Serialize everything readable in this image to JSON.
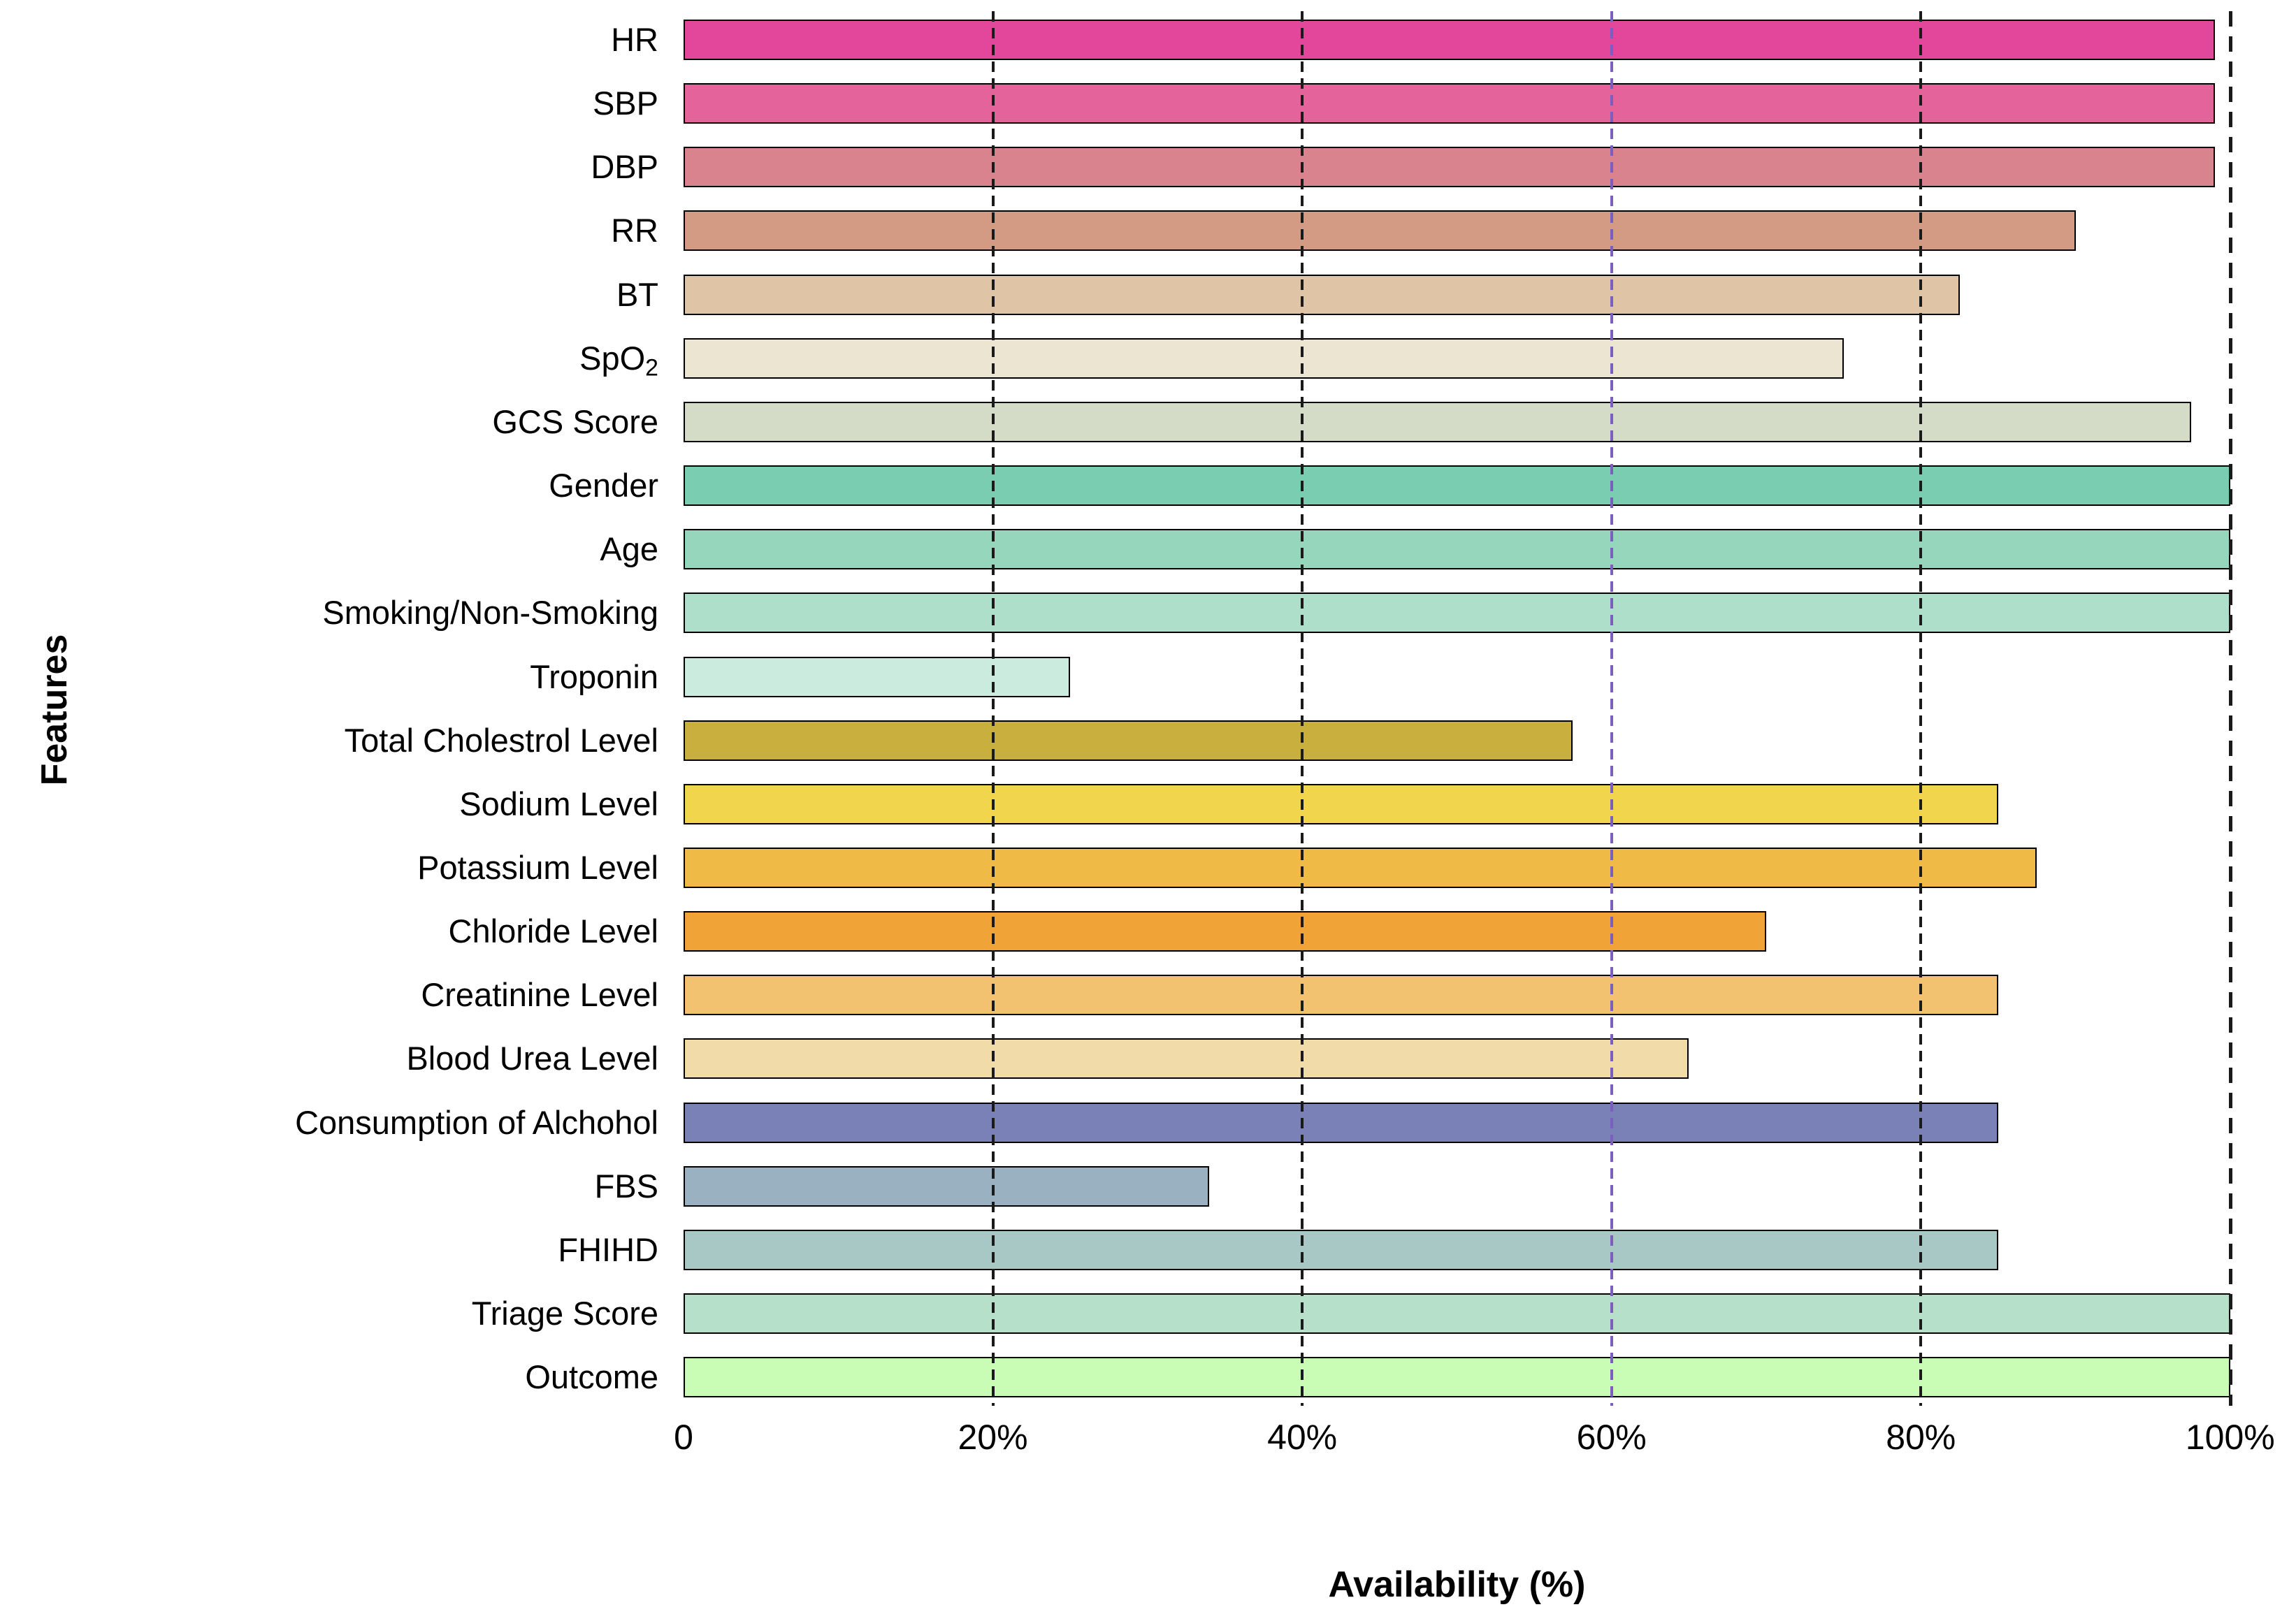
{
  "chart_data": {
    "type": "bar",
    "orientation": "horizontal",
    "xlabel": "Availability (%)",
    "ylabel": "Features",
    "xlim": [
      0,
      100
    ],
    "grid": {
      "style": "dashed-vertical",
      "values": [
        20,
        40,
        60,
        80,
        100
      ],
      "line_color": "#1a1a1a",
      "highlight_value": 60,
      "highlight_color": "#7A5FC0"
    },
    "x_ticks": [
      {
        "value": 0,
        "label": "0"
      },
      {
        "value": 20,
        "label": "20%"
      },
      {
        "value": 40,
        "label": "40%"
      },
      {
        "value": 60,
        "label": "60%"
      },
      {
        "value": 80,
        "label": "80%"
      },
      {
        "value": 100,
        "label": "100%"
      }
    ],
    "categories": [
      "HR",
      "SBP",
      "DBP",
      "RR",
      "BT",
      [
        "SpO",
        {
          "t": "2",
          "sub": true
        }
      ],
      "GCS Score",
      "Gender",
      "Age",
      "Smoking/Non-Smoking",
      "Troponin",
      "Total Cholestrol Level",
      "Sodium Level",
      "Potassium Level",
      "Chloride Level",
      "Creatinine Level",
      "Blood Urea Level",
      "Consumption of Alchohol",
      "FBS",
      "FHIHD",
      "Triage Score",
      "Outcome"
    ],
    "values": [
      99,
      99,
      99,
      90,
      82.5,
      75,
      97.5,
      100,
      100,
      100,
      25,
      57.5,
      85,
      87.5,
      70,
      85,
      65,
      85,
      34,
      85,
      100,
      100
    ],
    "bar_colors": [
      "#E2479B",
      "#E4639B",
      "#D9838F",
      "#D39B83",
      "#DFC4A5",
      "#EBE5D2",
      "#D4DCC7",
      "#7BCDB1",
      "#95D6BD",
      "#AEDFCB",
      "#CCEBDF",
      "#C9AF3E",
      "#F1D54D",
      "#F0BA46",
      "#F0A437",
      "#F3C271",
      "#F1DCA9",
      "#7A81B6",
      "#9AB1C2",
      "#A7C8C5",
      "#B6E0CA",
      "#C9FDB5"
    ],
    "bar_border_color": "#000000",
    "legend": "none",
    "background": "#ffffff"
  }
}
